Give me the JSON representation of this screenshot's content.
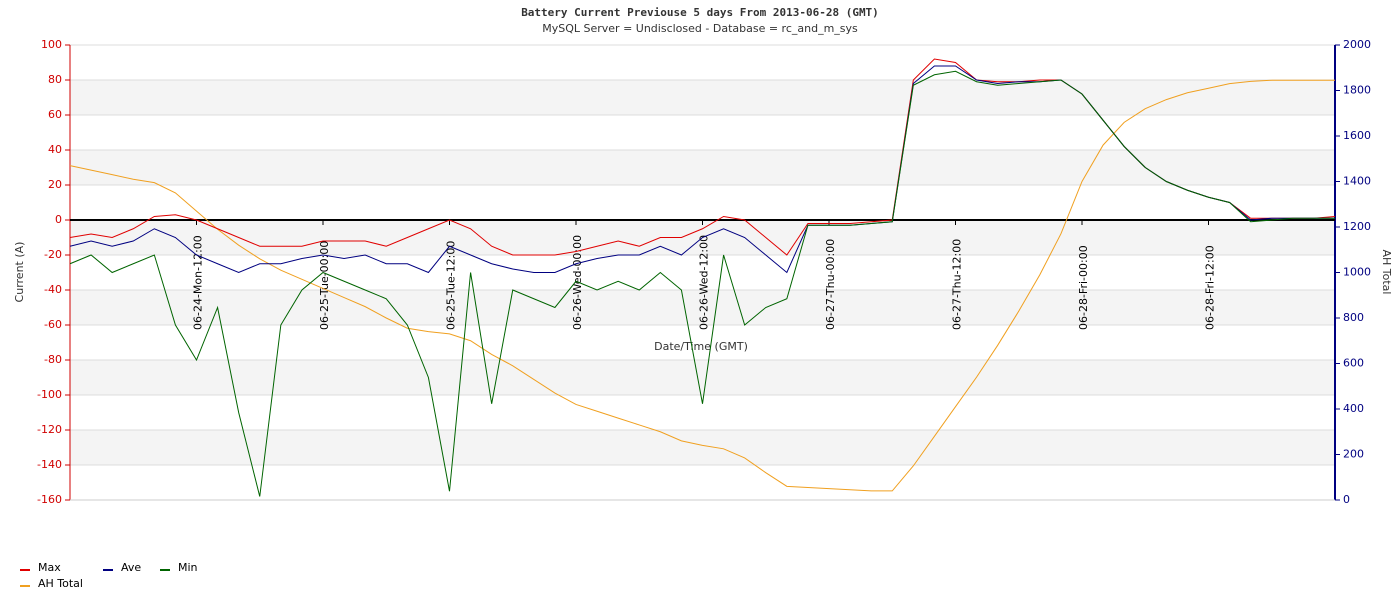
{
  "chart_data": {
    "type": "line",
    "title": "Battery Current Previouse 5 days From 2013-06-28 (GMT)",
    "subtitle": "MySQL Server = Undisclosed - Database = rc_and_m_sys",
    "x_label": "Date/Time (GMT)",
    "y_label": "Current (A)",
    "y2_label": "AH Total",
    "xlim": [
      0,
      120
    ],
    "xticks": [
      {
        "value": 12,
        "label": "06-24-Mon-12:00"
      },
      {
        "value": 24,
        "label": "06-25-Tue-00:00"
      },
      {
        "value": 36,
        "label": "06-25-Tue-12:00"
      },
      {
        "value": 48,
        "label": "06-26-Wed-00:00"
      },
      {
        "value": 60,
        "label": "06-26-Wed-12:00"
      },
      {
        "value": 72,
        "label": "06-27-Thu-00:00"
      },
      {
        "value": 84,
        "label": "06-27-Thu-12:00"
      },
      {
        "value": 96,
        "label": "06-28-Fri-00:00"
      },
      {
        "value": 108,
        "label": "06-28-Fri-12:00"
      }
    ],
    "ylim": [
      -160,
      100
    ],
    "yticks": [
      -160,
      -140,
      -120,
      -100,
      -80,
      -60,
      -40,
      -20,
      0,
      20,
      40,
      60,
      80,
      100
    ],
    "y2lim": [
      0,
      2000
    ],
    "y2ticks": [
      0,
      200,
      400,
      600,
      800,
      1000,
      1200,
      1400,
      1600,
      1800,
      2000
    ],
    "grid": true,
    "x": [
      0,
      2,
      4,
      6,
      8,
      10,
      12,
      14,
      16,
      18,
      20,
      22,
      24,
      26,
      28,
      30,
      32,
      34,
      36,
      38,
      40,
      42,
      44,
      46,
      48,
      50,
      52,
      54,
      56,
      58,
      60,
      62,
      64,
      66,
      68,
      70,
      72,
      74,
      76,
      78,
      80,
      82,
      84,
      86,
      88,
      90,
      92,
      94,
      96,
      98,
      100,
      102,
      104,
      106,
      108,
      110,
      112,
      114,
      116,
      118,
      120
    ],
    "series": [
      {
        "name": "Max",
        "color": "#e00000",
        "values": [
          -10,
          -8,
          -10,
          -5,
          2,
          3,
          0,
          -5,
          -10,
          -15,
          -15,
          -15,
          -12,
          -12,
          -12,
          -15,
          -10,
          -5,
          0,
          -5,
          -15,
          -20,
          -20,
          -20,
          -18,
          -15,
          -12,
          -15,
          -10,
          -10,
          -5,
          2,
          0,
          -10,
          -20,
          -2,
          -2,
          -2,
          -1,
          0,
          80,
          92,
          90,
          80,
          79,
          79,
          80,
          80,
          72,
          57,
          42,
          30,
          22,
          17,
          13,
          10,
          1,
          1,
          1,
          1,
          2
        ]
      },
      {
        "name": "Ave",
        "color": "#000080",
        "values": [
          -15,
          -12,
          -15,
          -12,
          -5,
          -10,
          -20,
          -25,
          -30,
          -25,
          -25,
          -22,
          -20,
          -22,
          -20,
          -25,
          -25,
          -30,
          -15,
          -20,
          -25,
          -28,
          -30,
          -30,
          -25,
          -22,
          -20,
          -20,
          -15,
          -20,
          -10,
          -5,
          -10,
          -20,
          -30,
          -3,
          -3,
          -3,
          -2,
          -1,
          78,
          88,
          88,
          80,
          78,
          79,
          79,
          80,
          72,
          57,
          42,
          30,
          22,
          17,
          13,
          10,
          0,
          1,
          1,
          1,
          1
        ]
      },
      {
        "name": "Min",
        "color": "#006400",
        "values": [
          -25,
          -20,
          -30,
          -25,
          -20,
          -60,
          -80,
          -50,
          -110,
          -158,
          -60,
          -40,
          -30,
          -35,
          -40,
          -45,
          -60,
          -90,
          -155,
          -30,
          -105,
          -40,
          -45,
          -50,
          -35,
          -40,
          -35,
          -40,
          -30,
          -40,
          -105,
          -20,
          -60,
          -50,
          -45,
          -3,
          -3,
          -3,
          -2,
          -1,
          77,
          83,
          85,
          79,
          77,
          78,
          79,
          80,
          72,
          57,
          42,
          30,
          22,
          17,
          13,
          10,
          -1,
          0,
          1,
          1,
          1
        ]
      },
      {
        "name": "AH Total",
        "color": "#f0a020",
        "axis": "y2",
        "values": [
          1470,
          1450,
          1430,
          1410,
          1395,
          1350,
          1270,
          1190,
          1120,
          1060,
          1010,
          970,
          930,
          890,
          850,
          800,
          755,
          740,
          730,
          700,
          640,
          590,
          530,
          470,
          420,
          390,
          360,
          330,
          300,
          260,
          240,
          225,
          185,
          120,
          60,
          55,
          50,
          45,
          40,
          40,
          150,
          280,
          410,
          540,
          680,
          830,
          990,
          1170,
          1400,
          1560,
          1660,
          1720,
          1760,
          1790,
          1810,
          1830,
          1840,
          1845,
          1845,
          1845,
          1845
        ]
      }
    ]
  }
}
